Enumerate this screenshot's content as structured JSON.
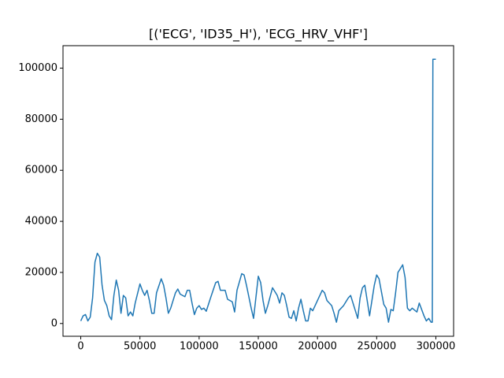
{
  "chart_data": {
    "type": "line",
    "title": "[('ECG', 'ID35_H'), 'ECG_HRV_VHF']",
    "x": [
      0,
      2000,
      4000,
      6000,
      8000,
      10000,
      12000,
      14000,
      16000,
      18000,
      20000,
      22000,
      24000,
      26000,
      28000,
      30000,
      32000,
      34000,
      36000,
      38000,
      40000,
      42000,
      44000,
      46000,
      50000,
      52000,
      54000,
      56000,
      58000,
      60000,
      62000,
      64000,
      68000,
      70000,
      72000,
      74000,
      76000,
      80000,
      82000,
      84000,
      88000,
      90000,
      92000,
      94000,
      96000,
      98000,
      100000,
      102000,
      104000,
      106000,
      110000,
      114000,
      116000,
      118000,
      122000,
      124000,
      128000,
      130000,
      132000,
      136000,
      138000,
      140000,
      144000,
      146000,
      150000,
      152000,
      154000,
      156000,
      158000,
      162000,
      166000,
      168000,
      170000,
      172000,
      174000,
      176000,
      178000,
      180000,
      182000,
      184000,
      186000,
      188000,
      190000,
      192000,
      194000,
      196000,
      200000,
      204000,
      206000,
      208000,
      212000,
      214000,
      216000,
      218000,
      222000,
      226000,
      228000,
      230000,
      232000,
      234000,
      236000,
      238000,
      240000,
      244000,
      248000,
      250000,
      252000,
      256000,
      258000,
      260000,
      262000,
      264000,
      266000,
      268000,
      272000,
      274000,
      276000,
      278000,
      280000,
      284000,
      286000,
      290000,
      292000,
      294000,
      296000,
      297000,
      297500,
      300000
    ],
    "series": [
      {
        "name": "ECG_HRV_VHF",
        "color": "#1f77b4",
        "values": [
          1000,
          3000,
          3500,
          1000,
          2500,
          10000,
          24000,
          27500,
          26000,
          15000,
          9000,
          7000,
          3000,
          1500,
          11000,
          17000,
          13000,
          4000,
          11000,
          10000,
          3000,
          4500,
          3000,
          8000,
          15500,
          13000,
          11000,
          13000,
          9000,
          4000,
          4000,
          12000,
          17500,
          15000,
          10000,
          4000,
          6000,
          12000,
          13500,
          11500,
          10500,
          13000,
          13000,
          8000,
          3500,
          6000,
          7000,
          5500,
          6000,
          4800,
          10500,
          16000,
          16500,
          13000,
          13000,
          9500,
          8500,
          4500,
          13000,
          19500,
          19000,
          15000,
          6000,
          2000,
          18500,
          16000,
          9000,
          4000,
          7000,
          14000,
          11000,
          8000,
          12000,
          11000,
          7000,
          2500,
          2000,
          5000,
          1000,
          6000,
          9500,
          5000,
          1000,
          1000,
          6000,
          5000,
          9000,
          13000,
          12000,
          9000,
          7000,
          4000,
          500,
          5000,
          7000,
          10000,
          11000,
          8000,
          5000,
          2000,
          10000,
          14000,
          15000,
          3000,
          15000,
          19000,
          17500,
          7500,
          6000,
          500,
          5500,
          5000,
          12000,
          20000,
          23000,
          18000,
          6000,
          5000,
          6000,
          4500,
          8000,
          3000,
          1000,
          2000,
          500,
          500,
          103500,
          103500
        ]
      }
    ],
    "xlim": [
      -15000,
      315000
    ],
    "ylim": [
      -5000,
      108800
    ],
    "xticks": [
      0,
      50000,
      100000,
      150000,
      200000,
      250000,
      300000
    ],
    "yticks": [
      0,
      20000,
      40000,
      60000,
      80000,
      100000
    ]
  }
}
